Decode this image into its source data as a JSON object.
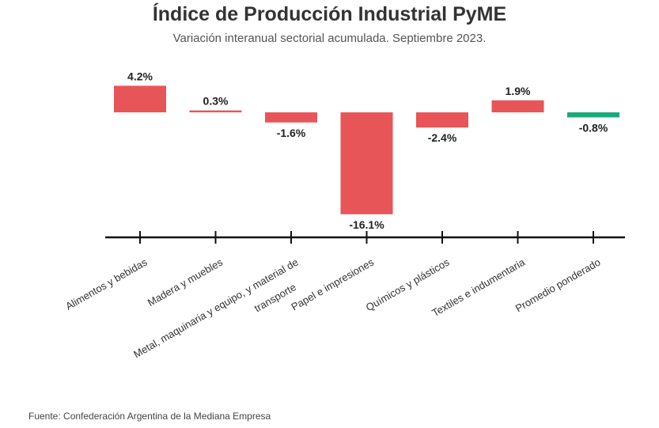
{
  "chart_data": {
    "type": "bar",
    "title": "Índice de Producción Industrial PyME",
    "subtitle": "Variación interanual sectorial acumulada. Septiembre 2023.",
    "categories": [
      [
        "Alimentos y bebidas"
      ],
      [
        "Madera y muebles"
      ],
      [
        "Metal, maquinaria y equipo, y material de",
        "transporte"
      ],
      [
        "Papel e impresiones"
      ],
      [
        "Químicos y plásticos"
      ],
      [
        "Textiles e indumentaria"
      ],
      [
        "Promedio ponderado"
      ]
    ],
    "values": [
      4.2,
      0.3,
      -1.6,
      -16.1,
      -2.4,
      1.9,
      -0.8
    ],
    "value_labels": [
      "4.2%",
      "0.3%",
      "-1.6%",
      "-16.1%",
      "-2.4%",
      "1.9%",
      "-0.8%"
    ],
    "highlight_index": 6,
    "colors": {
      "bar": "#e85558",
      "highlight": "#1aaa7a",
      "axis": "#111111"
    },
    "ylim": [
      -17.5,
      4.2
    ],
    "grid": false,
    "source": "Fuente: Confederación Argentina de la Mediana Empresa"
  }
}
